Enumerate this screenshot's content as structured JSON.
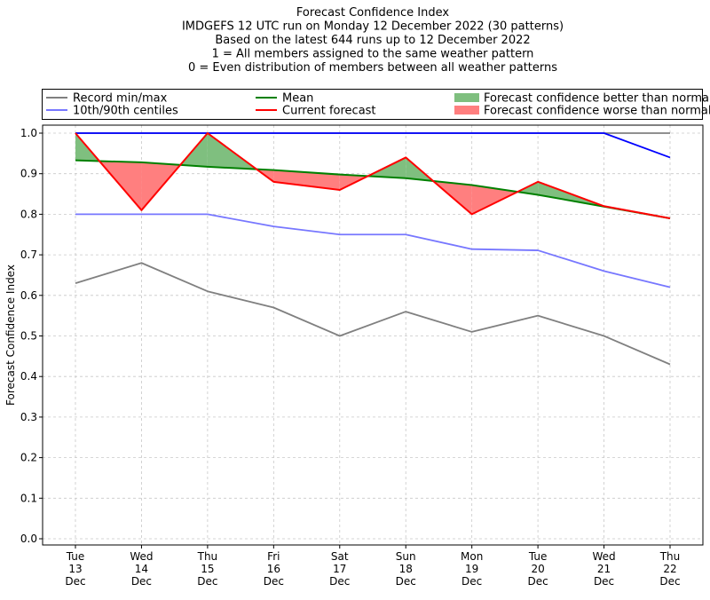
{
  "chart_data": {
    "type": "line",
    "title_lines": [
      "Forecast Confidence Index",
      "IMDGEFS 12 UTC run on Monday 12 December 2022 (30 patterns)",
      "Based on the latest 644 runs up to 12 December 2022",
      "1 = All members assigned to the same weather pattern",
      "0 = Even distribution of members between all weather patterns"
    ],
    "ylabel": "Forecast Confidence Index",
    "xlabel": "",
    "ylim": [
      0,
      1
    ],
    "yticks": [
      "0.0",
      "0.1",
      "0.2",
      "0.3",
      "0.4",
      "0.5",
      "0.6",
      "0.7",
      "0.8",
      "0.9",
      "1.0"
    ],
    "categories": [
      [
        "Tue",
        "13",
        "Dec"
      ],
      [
        "Wed",
        "14",
        "Dec"
      ],
      [
        "Thu",
        "15",
        "Dec"
      ],
      [
        "Fri",
        "16",
        "Dec"
      ],
      [
        "Sat",
        "17",
        "Dec"
      ],
      [
        "Sun",
        "18",
        "Dec"
      ],
      [
        "Mon",
        "19",
        "Dec"
      ],
      [
        "Tue",
        "20",
        "Dec"
      ],
      [
        "Wed",
        "21",
        "Dec"
      ],
      [
        "Thu",
        "22",
        "Dec"
      ]
    ],
    "grid": true,
    "legend": {
      "placement": "top",
      "entries": [
        {
          "label": "Record min/max",
          "kind": "line",
          "color": "#808080"
        },
        {
          "label": "10th/90th centiles",
          "kind": "line",
          "color": "#7777ff"
        },
        {
          "label": "Mean",
          "kind": "line",
          "color": "#008000"
        },
        {
          "label": "Current forecast",
          "kind": "line",
          "color": "#ff0000"
        },
        {
          "label": "Forecast confidence better than normal",
          "kind": "fill",
          "color": "#7fbf7f"
        },
        {
          "label": "Forecast confidence worse than normal",
          "kind": "fill",
          "color": "#ff7f7f"
        }
      ]
    },
    "series": [
      {
        "name": "Record min/max",
        "role": "record_max",
        "color": "#808080",
        "values": [
          1.0,
          1.0,
          1.0,
          1.0,
          1.0,
          1.0,
          1.0,
          1.0,
          1.0,
          1.0
        ]
      },
      {
        "name": "Record min/max",
        "role": "record_min",
        "color": "#808080",
        "values": [
          0.63,
          0.68,
          0.61,
          0.57,
          0.5,
          0.56,
          0.51,
          0.55,
          0.5,
          0.43
        ]
      },
      {
        "name": "10th/90th centiles",
        "role": "p90",
        "color": "#0000ff",
        "values": [
          1.0,
          1.0,
          1.0,
          1.0,
          1.0,
          1.0,
          1.0,
          1.0,
          1.0,
          0.94
        ]
      },
      {
        "name": "10th/90th centiles",
        "role": "p10",
        "color": "#7777ff",
        "values": [
          0.8,
          0.8,
          0.8,
          0.77,
          0.75,
          0.75,
          0.714,
          0.711,
          0.66,
          0.62
        ]
      },
      {
        "name": "Mean",
        "role": "mean",
        "color": "#008000",
        "values": [
          0.933,
          0.928,
          0.917,
          0.909,
          0.898,
          0.889,
          0.872,
          0.848,
          0.819,
          0.79
        ]
      },
      {
        "name": "Current forecast",
        "role": "current",
        "color": "#ff0000",
        "values": [
          1.0,
          0.81,
          1.0,
          0.88,
          0.86,
          0.94,
          0.8,
          0.88,
          0.82,
          0.79
        ]
      }
    ],
    "fill_colors": {
      "better": "#7fbf7f",
      "worse": "#ff7f7f"
    }
  }
}
